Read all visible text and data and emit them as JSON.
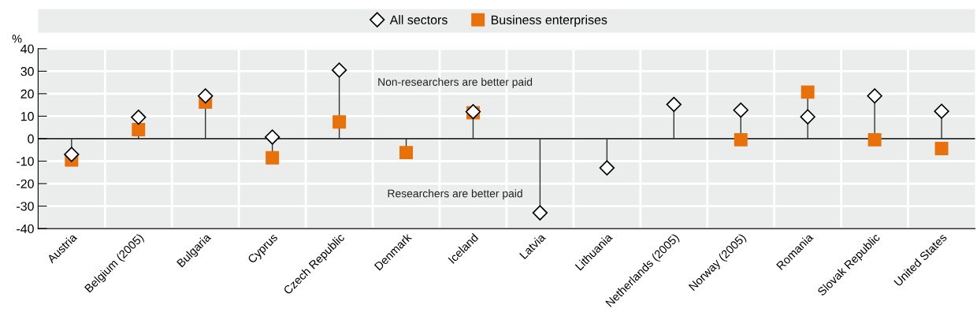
{
  "chart_data": {
    "type": "lollipop",
    "categories": [
      "Austria",
      "Belgium (2005)",
      "Bulgaria",
      "Cyprus",
      "Czech Republic",
      "Denmark",
      "Iceland",
      "Latvia",
      "Lithuania",
      "Netherlands (2005)",
      "Norway (2005)",
      "Romania",
      "Slovak Republic",
      "United States"
    ],
    "series": [
      {
        "name": "All sectors",
        "color": "#ffffff",
        "marker": "diamond",
        "values": [
          -7,
          9.5,
          19,
          0.7,
          30.5,
          null,
          12,
          -33,
          -13,
          15.2,
          12.7,
          9.7,
          19,
          12.2
        ]
      },
      {
        "name": "Business enterprises",
        "color": "#e8710a",
        "marker": "square",
        "values": [
          -9.5,
          4,
          16.3,
          -8.5,
          7.4,
          -6.2,
          11.5,
          null,
          null,
          null,
          -0.5,
          20.7,
          -0.5,
          -4.4
        ]
      }
    ],
    "ylabel": "%",
    "ylim": [
      -40,
      40
    ],
    "yticks": [
      -40,
      -30,
      -20,
      -10,
      0,
      10,
      20,
      30,
      40
    ],
    "annotations": [
      "Non-researchers are better paid",
      "Researchers are better paid"
    ],
    "grid": true,
    "legend": "top"
  }
}
